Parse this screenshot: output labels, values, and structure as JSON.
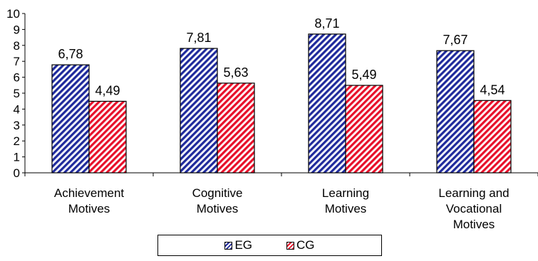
{
  "chart_data": {
    "type": "bar",
    "categories": [
      [
        "Achievement",
        "Motives"
      ],
      [
        "Cognitive",
        "Motives"
      ],
      [
        "Learning",
        "Motives"
      ],
      [
        "Learning and",
        "Vocational",
        "Motives"
      ]
    ],
    "series": [
      {
        "name": "EG",
        "values": [
          6.78,
          7.81,
          8.71,
          7.67
        ],
        "labels": [
          "6,78",
          "7,81",
          "8,71",
          "7,67"
        ],
        "color": "#1f2a9c"
      },
      {
        "name": "CG",
        "values": [
          4.49,
          5.63,
          5.49,
          4.54
        ],
        "labels": [
          "4,49",
          "5,63",
          "5,49",
          "4,54"
        ],
        "color": "#e8102a"
      }
    ],
    "ylim": [
      0,
      10
    ],
    "yticks": [
      0,
      1,
      2,
      3,
      4,
      5,
      6,
      7,
      8,
      9,
      10
    ],
    "title": "",
    "xlabel": "",
    "ylabel": "",
    "grid": false,
    "legend_position": "bottom"
  }
}
